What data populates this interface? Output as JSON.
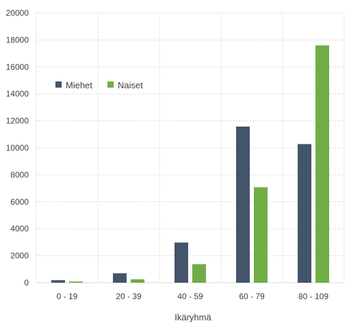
{
  "chart_data": {
    "type": "bar",
    "categories": [
      "0 - 19",
      "20 - 39",
      "40 - 59",
      "60 - 79",
      "80 - 109"
    ],
    "series": [
      {
        "name": "Miehet",
        "color": "#44546a",
        "values": [
          190,
          700,
          2980,
          11580,
          10280
        ]
      },
      {
        "name": "Naiset",
        "color": "#70ad47",
        "values": [
          90,
          250,
          1370,
          7080,
          17600
        ]
      }
    ],
    "xlabel": "Ikäryhmä",
    "ylabel": "",
    "ylim": [
      0,
      20000
    ],
    "yticks": [
      0,
      2000,
      4000,
      6000,
      8000,
      10000,
      12000,
      14000,
      16000,
      18000,
      20000
    ],
    "grid": true,
    "legend_position": "top-left"
  }
}
